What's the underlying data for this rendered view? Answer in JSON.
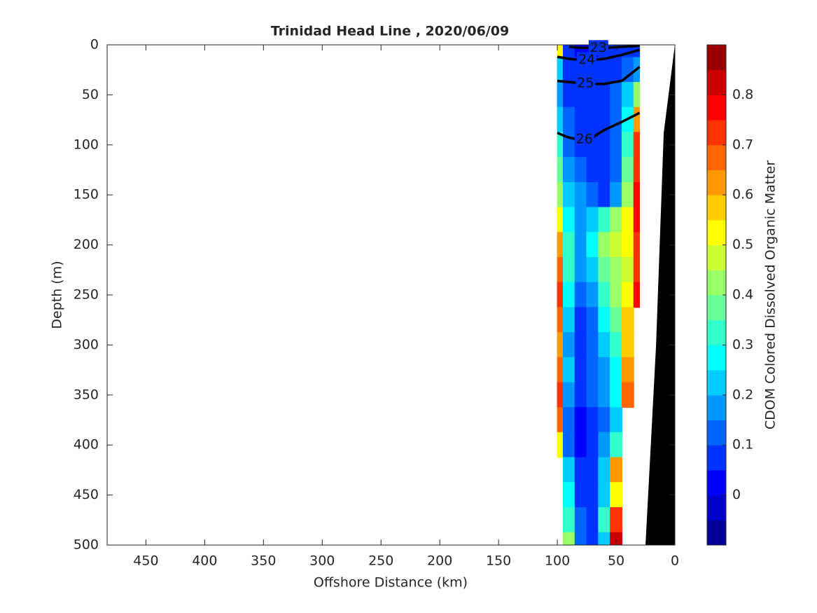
{
  "chart_data": {
    "type": "contour-section",
    "title": "Trinidad Head Line , 2020/06/09",
    "xlabel": "Offshore Distance (km)",
    "ylabel": "Depth (m)",
    "colorbar_label": "CDOM Colored Dissolved Organic Matter",
    "xlim": [
      483,
      0
    ],
    "xticks": [
      450,
      400,
      350,
      300,
      250,
      200,
      150,
      100,
      50,
      0
    ],
    "ylim": [
      0,
      500
    ],
    "yticks": [
      0,
      50,
      100,
      150,
      200,
      250,
      300,
      350,
      400,
      450,
      500
    ],
    "colormap": "jet",
    "clim": [
      -0.1,
      0.9
    ],
    "level_step": 0.05,
    "cticks": [
      0,
      0.1,
      0.2,
      0.3,
      0.4,
      0.5,
      0.6,
      0.7,
      0.8
    ],
    "stations": [
      100,
      90,
      80,
      70,
      60,
      50,
      40,
      30
    ],
    "depths": [
      0,
      25,
      50,
      75,
      100,
      125,
      150,
      175,
      200,
      225,
      250,
      275,
      300,
      325,
      350,
      375,
      400,
      425,
      450,
      475,
      500
    ],
    "z": [
      [
        0.5,
        0.05,
        0.0,
        0.0,
        0.05,
        0.05,
        0.05,
        0.05
      ],
      [
        0.2,
        0.05,
        0.05,
        0.05,
        0.05,
        0.05,
        0.1,
        0.15
      ],
      [
        0.15,
        0.05,
        0.05,
        0.05,
        0.05,
        0.1,
        0.2,
        0.4
      ],
      [
        0.2,
        0.1,
        0.05,
        0.05,
        0.05,
        0.1,
        0.25,
        0.6
      ],
      [
        0.3,
        0.1,
        0.05,
        0.05,
        0.05,
        0.1,
        0.3,
        0.7
      ],
      [
        0.35,
        0.15,
        0.1,
        0.05,
        0.05,
        0.1,
        0.35,
        0.7
      ],
      [
        0.4,
        0.2,
        0.15,
        0.1,
        0.05,
        0.15,
        0.4,
        0.75
      ],
      [
        0.5,
        0.25,
        0.15,
        0.2,
        0.3,
        0.4,
        0.5,
        0.75
      ],
      [
        0.6,
        0.3,
        0.15,
        0.25,
        0.4,
        0.45,
        0.5,
        0.7
      ],
      [
        0.65,
        0.3,
        0.15,
        0.2,
        0.35,
        0.4,
        0.45,
        0.7
      ],
      [
        0.7,
        0.25,
        0.1,
        0.15,
        0.3,
        0.4,
        0.5,
        0.75
      ],
      [
        0.65,
        0.2,
        0.05,
        0.1,
        0.25,
        0.35,
        0.55,
        null
      ],
      [
        0.6,
        0.15,
        0.05,
        0.1,
        0.2,
        0.3,
        0.55,
        null
      ],
      [
        0.65,
        0.2,
        0.05,
        0.1,
        0.15,
        0.25,
        0.6,
        null
      ],
      [
        0.7,
        0.15,
        0.05,
        0.1,
        0.15,
        0.25,
        0.65,
        null
      ],
      [
        0.65,
        0.1,
        0.0,
        0.05,
        0.1,
        0.2,
        null,
        null
      ],
      [
        0.5,
        0.1,
        0.0,
        0.05,
        0.15,
        0.3,
        null,
        null
      ],
      [
        null,
        0.2,
        0.05,
        0.05,
        0.2,
        0.6,
        null,
        null
      ],
      [
        null,
        0.25,
        0.05,
        0.05,
        0.2,
        0.5,
        null,
        null
      ],
      [
        null,
        0.3,
        0.1,
        0.05,
        0.3,
        0.7,
        null,
        null
      ],
      [
        null,
        0.4,
        0.1,
        0.05,
        0.2,
        0.8,
        null,
        null
      ]
    ],
    "contours": [
      {
        "level": 23,
        "x": [
          90,
          80,
          70,
          60,
          45,
          30
        ],
        "y": [
          2,
          3,
          3,
          3,
          2,
          1
        ]
      },
      {
        "level": 24,
        "x": [
          100,
          90,
          80,
          70,
          60,
          45,
          30
        ],
        "y": [
          12,
          14,
          15,
          15,
          14,
          10,
          5
        ]
      },
      {
        "level": 25,
        "x": [
          100,
          92,
          82,
          70,
          60,
          45,
          30
        ],
        "y": [
          36,
          37,
          38,
          39,
          39,
          36,
          22
        ]
      },
      {
        "level": 26,
        "x": [
          100,
          92,
          82,
          72,
          60,
          45,
          30
        ],
        "y": [
          88,
          92,
          95,
          94,
          85,
          77,
          68
        ]
      }
    ],
    "bathymetry": {
      "x": [
        0,
        9.5,
        16,
        25
      ],
      "y": [
        0,
        88,
        300,
        500
      ]
    }
  }
}
